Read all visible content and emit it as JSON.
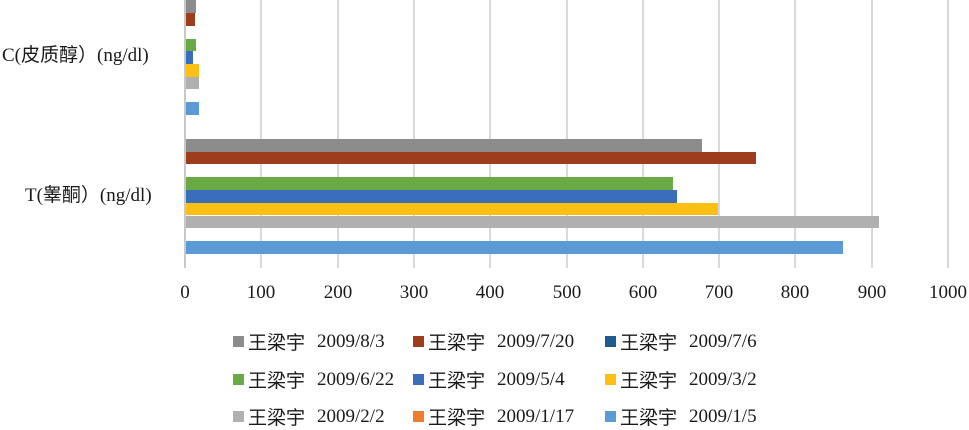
{
  "chart_data": {
    "type": "bar",
    "orientation": "horizontal",
    "title": "",
    "xlabel": "",
    "ylabel": "",
    "xlim": [
      0,
      1000
    ],
    "x_ticks": [
      "0",
      "100",
      "200",
      "300",
      "400",
      "500",
      "600",
      "700",
      "800",
      "900",
      "1000"
    ],
    "grid": true,
    "legend_position": "bottom",
    "categories": [
      "C(皮质醇）(ng/dl)",
      "T(睾酮）(ng/dl)"
    ],
    "series": [
      {
        "name": "王梁宇  2009/8/3",
        "color": "#8c8c8c",
        "values": [
          15,
          678
        ]
      },
      {
        "name": "王梁宇  2009/7/20",
        "color": "#9e3d1c",
        "values": [
          13,
          748
        ]
      },
      {
        "name": "王梁宇  2009/7/6",
        "color": "#1f5a8c",
        "values": [
          null,
          null
        ]
      },
      {
        "name": "王梁宇  2009/6/22",
        "color": "#6aaa45",
        "values": [
          15,
          639
        ]
      },
      {
        "name": "王梁宇  2009/5/4",
        "color": "#3b6dbd",
        "values": [
          11,
          645
        ]
      },
      {
        "name": "王梁宇  2009/3/2",
        "color": "#fcbf14",
        "values": [
          19,
          698
        ]
      },
      {
        "name": "王梁宇  2009/2/2",
        "color": "#b0b0b0",
        "values": [
          19,
          909
        ]
      },
      {
        "name": "王梁宇  2009/1/17",
        "color": "#ed7d31",
        "values": [
          null,
          null
        ]
      },
      {
        "name": "王梁宇  2009/1/5",
        "color": "#5b9bd5",
        "values": [
          19,
          863
        ]
      }
    ]
  },
  "axis": {
    "category_labels": [
      "C(皮质醇）(ng/dl)",
      "T(睾酮）(ng/dl)"
    ],
    "tick_labels": [
      "0",
      "100",
      "200",
      "300",
      "400",
      "500",
      "600",
      "700",
      "800",
      "900",
      "1000"
    ]
  },
  "legend": {
    "items": [
      {
        "name": "王梁宇",
        "date": "2009/8/3",
        "color": "#8c8c8c"
      },
      {
        "name": "王梁宇",
        "date": "2009/7/20",
        "color": "#9e3d1c"
      },
      {
        "name": "王梁宇",
        "date": "2009/7/6",
        "color": "#1f5a8c"
      },
      {
        "name": "王梁宇",
        "date": "2009/6/22",
        "color": "#6aaa45"
      },
      {
        "name": "王梁宇",
        "date": "2009/5/4",
        "color": "#3b6dbd"
      },
      {
        "name": "王梁宇",
        "date": "2009/3/2",
        "color": "#fcbf14"
      },
      {
        "name": "王梁宇",
        "date": "2009/2/2",
        "color": "#b0b0b0"
      },
      {
        "name": "王梁宇",
        "date": "2009/1/17",
        "color": "#ed7d31"
      },
      {
        "name": "王梁宇",
        "date": "2009/1/5",
        "color": "#5b9bd5"
      }
    ]
  }
}
